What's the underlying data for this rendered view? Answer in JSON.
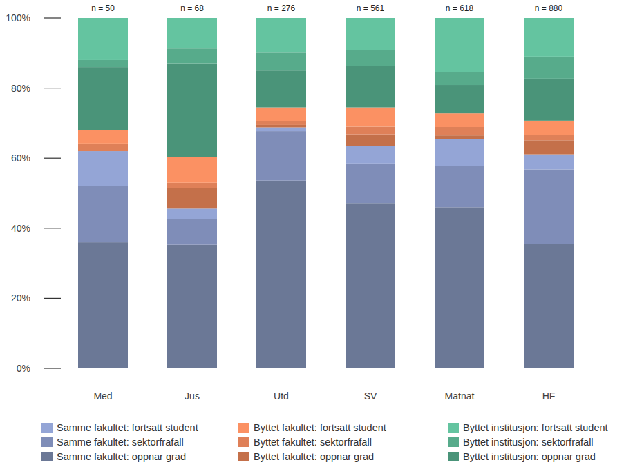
{
  "chart_data": {
    "type": "bar",
    "stacked": true,
    "grid": false,
    "legend": "bottom",
    "categories": [
      "Med",
      "Jus",
      "Utd",
      "SV",
      "Matnat",
      "HF"
    ],
    "annotations": [
      "n = 50",
      "n = 68",
      "n = 276",
      "n = 561",
      "n = 618",
      "n = 880"
    ],
    "ylim": [
      0,
      100
    ],
    "yticks": [
      {
        "value": 0,
        "label": "0%"
      },
      {
        "value": 20,
        "label": "20%"
      },
      {
        "value": 40,
        "label": "40%"
      },
      {
        "value": 60,
        "label": "60%"
      },
      {
        "value": 80,
        "label": "80%"
      },
      {
        "value": 100,
        "label": "100%"
      }
    ],
    "series": [
      {
        "name": "Samme fakultet: oppnar grad",
        "color": "#6b7896",
        "values": [
          36,
          35.3,
          53.6,
          47.0,
          46.0,
          35.6
        ]
      },
      {
        "name": "Samme fakultet: sektorfrafall",
        "color": "#7f8db8",
        "values": [
          16,
          7.4,
          14.1,
          11.3,
          11.8,
          21.2
        ]
      },
      {
        "name": "Samme fakultet: fortsatt student",
        "color": "#94a5d6",
        "values": [
          10,
          2.9,
          1.1,
          5.2,
          7.6,
          4.3
        ]
      },
      {
        "name": "Byttet fakultet: oppnar grad",
        "color": "#c4704a",
        "values": [
          0,
          5.9,
          0.7,
          3.3,
          1.1,
          4.0
        ]
      },
      {
        "name": "Byttet fakultet: sektorfrafall",
        "color": "#df8058",
        "values": [
          2,
          1.5,
          1.1,
          2.2,
          2.4,
          1.6
        ]
      },
      {
        "name": "Byttet fakultet: fortsatt student",
        "color": "#fb9163",
        "values": [
          4,
          7.4,
          3.9,
          5.5,
          3.9,
          4.0
        ]
      },
      {
        "name": "Byttet institusjon: oppnar grad",
        "color": "#4a9479",
        "values": [
          18,
          26.5,
          10.5,
          11.8,
          8.1,
          12.0
        ]
      },
      {
        "name": "Byttet institusjon: sektorfrafall",
        "color": "#57ab8b",
        "values": [
          2,
          4.4,
          5.1,
          4.6,
          3.6,
          6.3
        ]
      },
      {
        "name": "Byttet institusjon: fortsatt student",
        "color": "#64c4a0",
        "values": [
          12,
          8.7,
          9.9,
          9.1,
          15.5,
          11.0
        ]
      }
    ]
  }
}
